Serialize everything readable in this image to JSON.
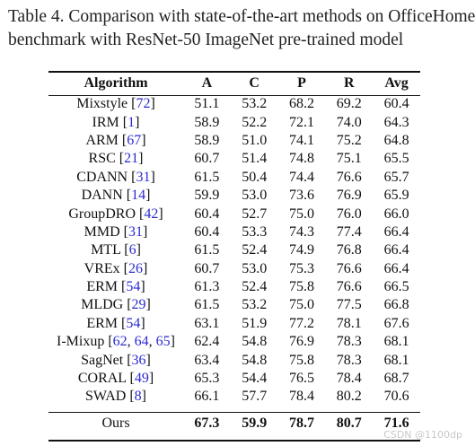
{
  "caption": {
    "line1": "Table 4. Comparison with state-of-the-art methods on OfficeHome",
    "line2": "benchmark with ResNet-50 ImageNet pre-trained model"
  },
  "table": {
    "headers": [
      "Algorithm",
      "A",
      "C",
      "P",
      "R",
      "Avg"
    ],
    "rows": [
      {
        "name": "Mixstyle",
        "refs": [
          "72"
        ],
        "values": [
          "51.1",
          "53.2",
          "68.2",
          "69.2",
          "60.4"
        ]
      },
      {
        "name": "IRM",
        "refs": [
          "1"
        ],
        "values": [
          "58.9",
          "52.2",
          "72.1",
          "74.0",
          "64.3"
        ]
      },
      {
        "name": "ARM",
        "refs": [
          "67"
        ],
        "values": [
          "58.9",
          "51.0",
          "74.1",
          "75.2",
          "64.8"
        ]
      },
      {
        "name": "RSC",
        "refs": [
          "21"
        ],
        "values": [
          "60.7",
          "51.4",
          "74.8",
          "75.1",
          "65.5"
        ]
      },
      {
        "name": "CDANN",
        "refs": [
          "31"
        ],
        "values": [
          "61.5",
          "50.4",
          "74.4",
          "76.6",
          "65.7"
        ]
      },
      {
        "name": "DANN",
        "refs": [
          "14"
        ],
        "values": [
          "59.9",
          "53.0",
          "73.6",
          "76.9",
          "65.9"
        ]
      },
      {
        "name": "GroupDRO",
        "refs": [
          "42"
        ],
        "values": [
          "60.4",
          "52.7",
          "75.0",
          "76.0",
          "66.0"
        ]
      },
      {
        "name": "MMD",
        "refs": [
          "31"
        ],
        "values": [
          "60.4",
          "53.3",
          "74.3",
          "77.4",
          "66.4"
        ]
      },
      {
        "name": "MTL",
        "refs": [
          "6"
        ],
        "values": [
          "61.5",
          "52.4",
          "74.9",
          "76.8",
          "66.4"
        ]
      },
      {
        "name": "VREx",
        "refs": [
          "26"
        ],
        "values": [
          "60.7",
          "53.0",
          "75.3",
          "76.6",
          "66.4"
        ]
      },
      {
        "name": "ERM",
        "refs": [
          "54"
        ],
        "values": [
          "61.3",
          "52.4",
          "75.8",
          "76.6",
          "66.5"
        ]
      },
      {
        "name": "MLDG",
        "refs": [
          "29"
        ],
        "values": [
          "61.5",
          "53.2",
          "75.0",
          "77.5",
          "66.8"
        ]
      },
      {
        "name": "ERM",
        "refs": [
          "54"
        ],
        "values": [
          "63.1",
          "51.9",
          "77.2",
          "78.1",
          "67.6"
        ]
      },
      {
        "name": "I-Mixup",
        "refs": [
          "62",
          "64",
          "65"
        ],
        "values": [
          "62.4",
          "54.8",
          "76.9",
          "78.3",
          "68.1"
        ]
      },
      {
        "name": "SagNet",
        "refs": [
          "36"
        ],
        "values": [
          "63.4",
          "54.8",
          "75.8",
          "78.3",
          "68.1"
        ]
      },
      {
        "name": "CORAL",
        "refs": [
          "49"
        ],
        "values": [
          "65.3",
          "54.4",
          "76.5",
          "78.4",
          "68.7"
        ]
      },
      {
        "name": "SWAD",
        "refs": [
          "8"
        ],
        "values": [
          "66.1",
          "57.7",
          "78.4",
          "80.2",
          "70.6"
        ]
      }
    ],
    "ours": {
      "name": "Ours",
      "values": [
        "67.3",
        "59.9",
        "78.7",
        "80.7",
        "71.6"
      ]
    }
  },
  "watermark": "CSDN @1100dp"
}
